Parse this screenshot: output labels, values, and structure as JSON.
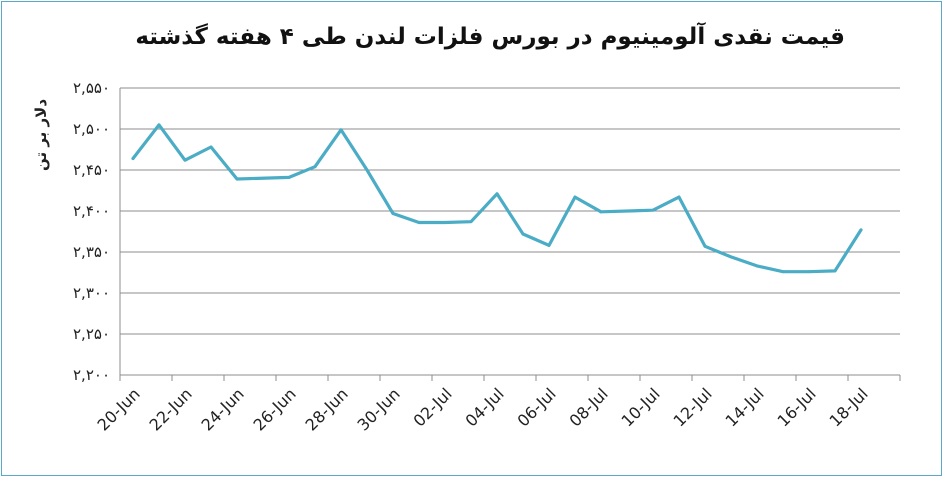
{
  "chart_data": {
    "type": "line",
    "title": "قیمت نقدی آلومینیوم در بورس فلزات لندن طی ۴ هفته گذشته",
    "ylabel": "دلار بر تن",
    "xlabel": "",
    "ylim": [
      2200,
      2550
    ],
    "y_ticks": [
      2200,
      2250,
      2300,
      2350,
      2400,
      2450,
      2500,
      2550
    ],
    "y_tick_labels": [
      "۲,۲۰۰",
      "۲,۲۵۰",
      "۲,۳۰۰",
      "۲,۳۵۰",
      "۲,۴۰۰",
      "۲,۴۵۰",
      "۲,۵۰۰",
      "۲,۵۵۰"
    ],
    "x_tick_labels": [
      "20-Jun",
      "22-Jun",
      "24-Jun",
      "26-Jun",
      "28-Jun",
      "30-Jun",
      "02-Jul",
      "04-Jul",
      "06-Jul",
      "08-Jul",
      "10-Jul",
      "12-Jul",
      "14-Jul",
      "16-Jul",
      "18-Jul"
    ],
    "grid": true,
    "line_color": "#4bacc6",
    "series": [
      {
        "x": [
          "20-Jun",
          "21-Jun",
          "22-Jun",
          "23-Jun",
          "24-Jun",
          "26-Jun",
          "27-Jun",
          "28-Jun",
          "29-Jun",
          "30-Jun",
          "01-Jul",
          "02-Jul",
          "03-Jul",
          "04-Jul",
          "05-Jul",
          "06-Jul",
          "07-Jul",
          "08-Jul",
          "10-Jul",
          "11-Jul",
          "12-Jul",
          "13-Jul",
          "14-Jul",
          "15-Jul",
          "16-Jul",
          "17-Jul",
          "18-Jul"
        ],
        "values": [
          2464,
          2505,
          2462,
          2478,
          2439,
          2441,
          2454,
          2499,
          2450,
          2397,
          2386,
          2386,
          2387,
          2421,
          2372,
          2358,
          2417,
          2399,
          2401,
          2417,
          2357,
          2344,
          2333,
          2326,
          2326,
          2327,
          2377
        ]
      }
    ]
  }
}
